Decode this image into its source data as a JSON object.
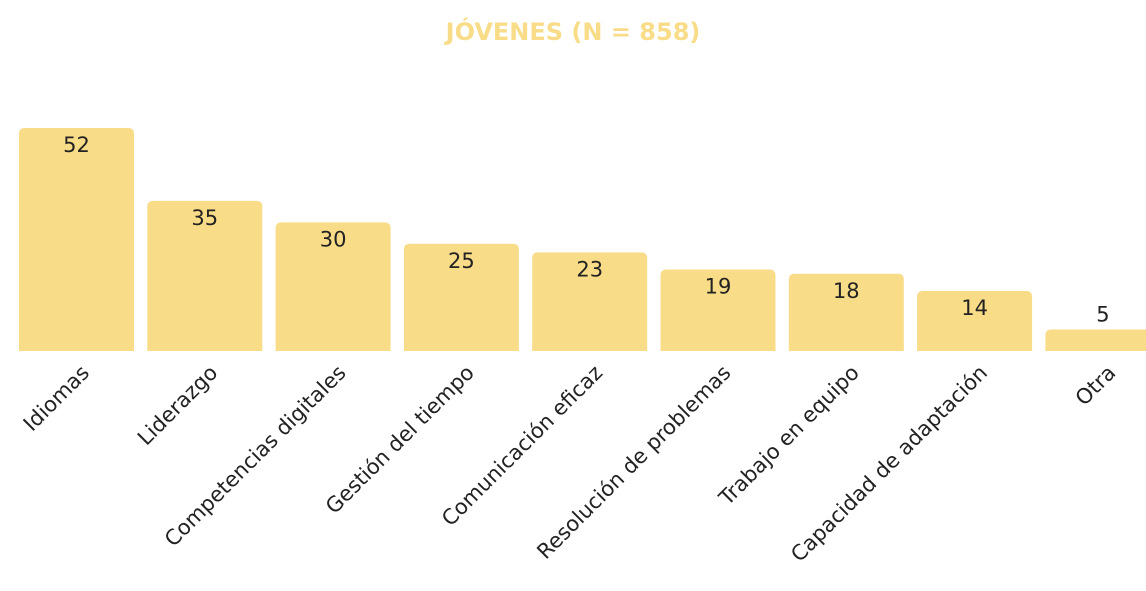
{
  "chart_data": {
    "type": "bar",
    "title": "JÓVENES (N = 858)",
    "categories": [
      "Idiomas",
      "Liderazgo",
      "Competencias digitales",
      "Gestión del tiempo",
      "Comunicación eficaz",
      "Resolución de problemas",
      "Trabajo en equipo",
      "Capacidad de adaptación",
      "Otra"
    ],
    "values": [
      52,
      35,
      30,
      25,
      23,
      19,
      18,
      14,
      5
    ],
    "color": "#f9dc88"
  }
}
